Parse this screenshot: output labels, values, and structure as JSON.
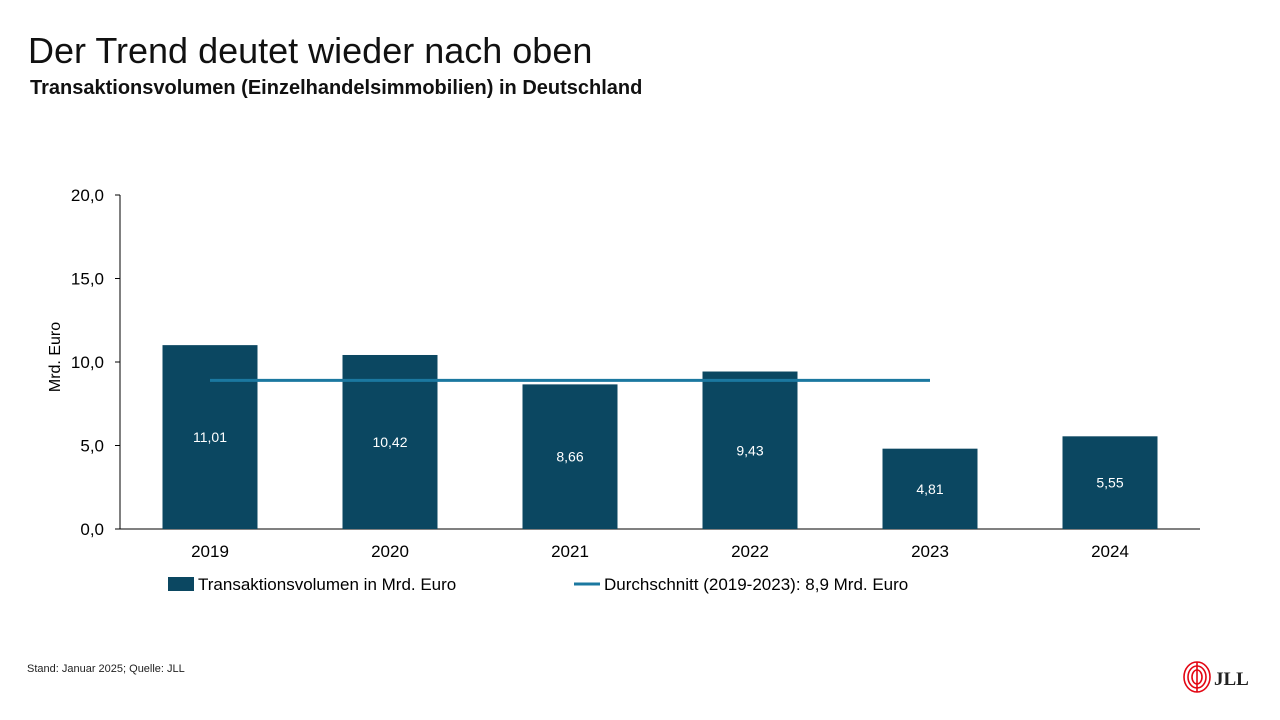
{
  "header": {
    "title": "Der Trend deutet wieder nach oben",
    "subtitle": "Transaktionsvolumen (Einzelhandelsimmobilien) in Deutschland"
  },
  "chart_data": {
    "type": "bar",
    "categories": [
      "2019",
      "2020",
      "2021",
      "2022",
      "2023",
      "2024"
    ],
    "series": [
      {
        "name": "Transaktionsvolumen in Mrd. Euro",
        "values": [
          11.01,
          10.42,
          8.66,
          9.43,
          4.81,
          5.55
        ],
        "value_labels": [
          "11,01",
          "10,42",
          "8,66",
          "9,43",
          "4,81",
          "5,55"
        ],
        "color": "#0b4761"
      },
      {
        "name": "Durchschnitt (2019-2023): 8,9 Mrd. Euro",
        "type": "line",
        "value": 8.9,
        "x_range": [
          "2019",
          "2023"
        ],
        "color": "#1b78a0"
      }
    ],
    "title": "",
    "xlabel": "",
    "ylabel": "Mrd. Euro",
    "ylim": [
      0,
      20
    ],
    "yticks": [
      0,
      5,
      10,
      15,
      20
    ],
    "ytick_labels": [
      "0,0",
      "5,0",
      "10,0",
      "15,0",
      "20,0"
    ],
    "grid": false,
    "legend": "bottom"
  },
  "footer": {
    "note": "Stand: Januar 2025; Quelle: JLL",
    "logo_text": "JLL",
    "logo_color": "#e30613"
  }
}
